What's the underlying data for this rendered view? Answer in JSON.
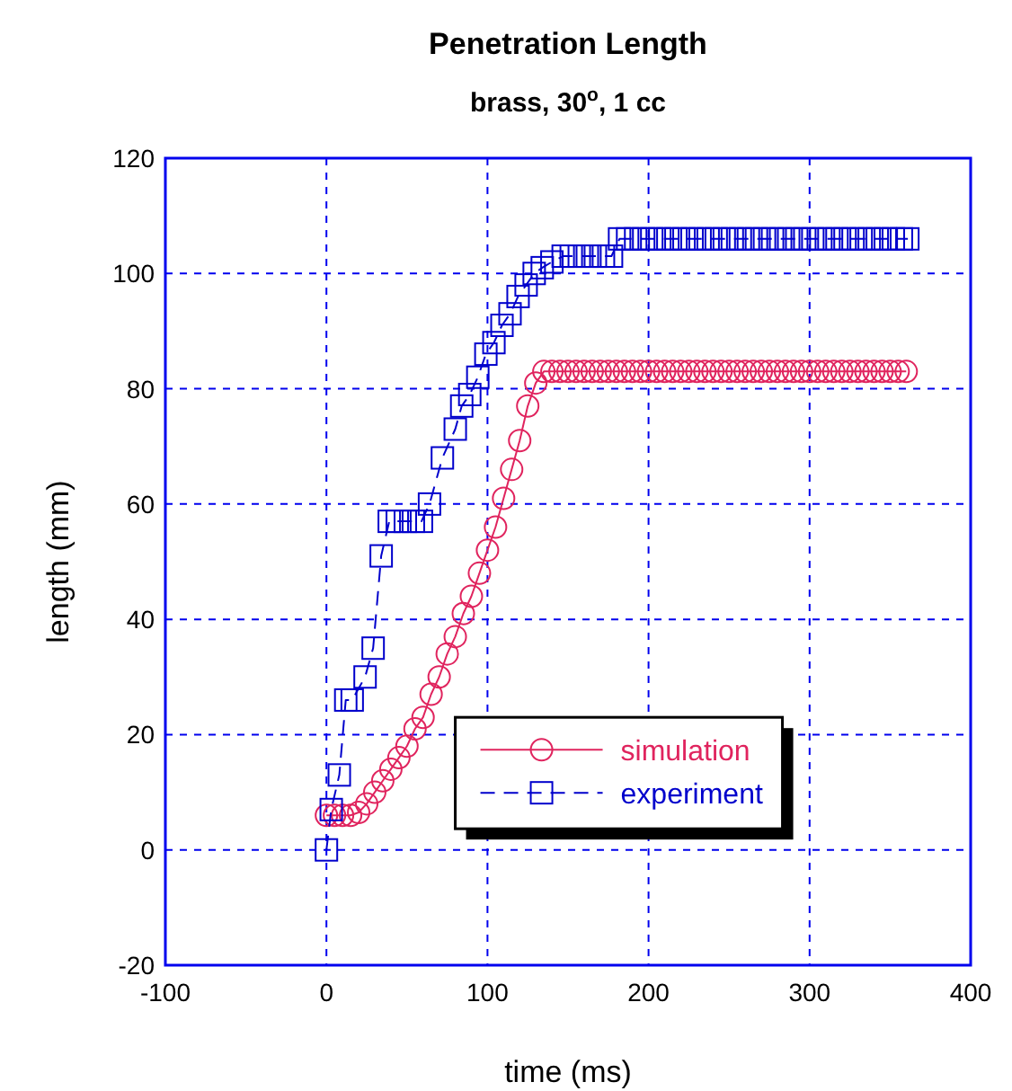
{
  "chart_data": {
    "type": "line",
    "title": "Penetration Length",
    "subtitle": "brass, 30$^{o}$, 1 cc",
    "xlabel": "time (ms)",
    "ylabel": "length (mm)",
    "xlim": [
      -100,
      400
    ],
    "xticks": [
      -100,
      0,
      100,
      200,
      300,
      400
    ],
    "ylim": [
      -20,
      120
    ],
    "yticks": [
      -20,
      0,
      20,
      40,
      60,
      80,
      100,
      120
    ],
    "grid": true,
    "legend": "bottom right",
    "series": [
      {
        "name": "simulation",
        "color": "#e0245e",
        "marker": "circle",
        "line_style": "solid",
        "x": [
          0,
          5,
          10,
          15,
          20,
          25,
          30,
          35,
          40,
          45,
          50,
          55,
          60,
          65,
          70,
          75,
          80,
          85,
          90,
          95,
          100,
          105,
          110,
          115,
          120,
          125,
          130,
          135,
          140,
          145,
          150,
          155,
          160,
          165,
          170,
          175,
          180,
          185,
          190,
          195,
          200,
          205,
          210,
          215,
          220,
          225,
          230,
          235,
          240,
          245,
          250,
          255,
          260,
          265,
          270,
          275,
          280,
          285,
          290,
          295,
          300,
          305,
          310,
          315,
          320,
          325,
          330,
          335,
          340,
          345,
          350,
          355,
          360
        ],
        "values": [
          6,
          6,
          6,
          6,
          6.5,
          8,
          10,
          12,
          14,
          16,
          18,
          21,
          23,
          27,
          30,
          34,
          37,
          41,
          44,
          48,
          52,
          56,
          61,
          66,
          71,
          77,
          81,
          83,
          83,
          83,
          83,
          83,
          83,
          83,
          83,
          83,
          83,
          83,
          83,
          83,
          83,
          83,
          83,
          83,
          83,
          83,
          83,
          83,
          83,
          83,
          83,
          83,
          83,
          83,
          83,
          83,
          83,
          83,
          83,
          83,
          83,
          83,
          83,
          83,
          83,
          83,
          83,
          83,
          83,
          83,
          83,
          83,
          83
        ]
      },
      {
        "name": "experiment",
        "color": "#0000cc",
        "marker": "square",
        "line_style": "dashed",
        "x": [
          0,
          3,
          8,
          12,
          16,
          24,
          29,
          34,
          39,
          44,
          49,
          54,
          59,
          64,
          72,
          80,
          84,
          89,
          94,
          99,
          104,
          109,
          114,
          119,
          124,
          129,
          134,
          140,
          147,
          152,
          157,
          162,
          167,
          172,
          177,
          182,
          187,
          192,
          197,
          202,
          207,
          212,
          217,
          222,
          227,
          232,
          237,
          242,
          247,
          252,
          257,
          262,
          267,
          272,
          277,
          282,
          287,
          292,
          297,
          302,
          307,
          312,
          317,
          322,
          327,
          332,
          337,
          342,
          347,
          352,
          357,
          361
        ],
        "values": [
          0,
          7,
          13,
          26,
          26,
          30,
          35,
          51,
          57,
          57,
          57,
          57,
          57,
          60,
          68,
          73,
          77,
          79,
          82,
          86,
          88,
          91,
          93,
          96,
          98,
          100,
          101,
          102,
          103,
          103,
          103,
          103,
          103,
          103,
          103,
          106,
          106,
          106,
          106,
          106,
          106,
          106,
          106,
          106,
          106,
          106,
          106,
          106,
          106,
          106,
          106,
          106,
          106,
          106,
          106,
          106,
          106,
          106,
          106,
          106,
          106,
          106,
          106,
          106,
          106,
          106,
          106,
          106,
          106,
          106,
          106,
          106
        ]
      }
    ]
  }
}
